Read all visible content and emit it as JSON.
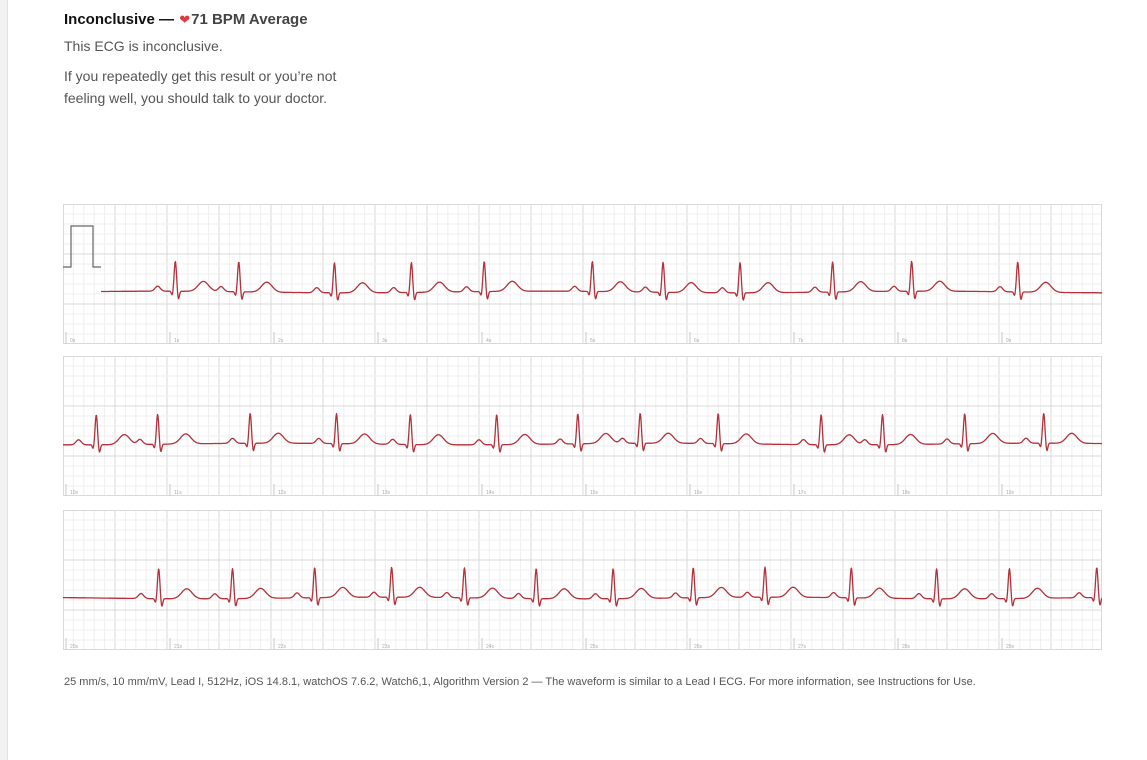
{
  "header": {
    "title": "Inconclusive —",
    "heart_icon": "heart-icon",
    "bpm": "71 BPM Average",
    "subtitle": "This ECG is inconclusive.",
    "advice": "If you repeatedly get this result or you’re not feeling well, you should talk to your doctor."
  },
  "footnote": "25 mm/s, 10 mm/mV, Lead I, 512Hz, iOS 14.8.1, watchOS 7.6.2, Watch6,1, Algorithm Version 2 — The waveform is similar to a Lead I ECG. For more information, see Instructions for Use.",
  "colors": {
    "trace": "#b5303a",
    "grid_major": "#d9d9d9",
    "grid_minor": "#efefef",
    "calibration": "#666666"
  },
  "chart_data": {
    "type": "line",
    "title": "",
    "xlabel": "",
    "ylabel": "",
    "lead": "Lead I",
    "paper_speed": "25 mm/s",
    "gain": "10 mm/mV",
    "strips": [
      {
        "tick_labels": [
          "0s",
          "1s",
          "2s",
          "3s",
          "4s",
          "5s",
          "6s",
          "7s",
          "8s",
          "9s"
        ],
        "x_range": [
          0,
          10
        ],
        "beats": [
          1.08,
          1.69,
          2.61,
          3.35,
          4.05,
          5.09,
          5.77,
          6.51,
          7.4,
          8.16,
          9.18
        ]
      },
      {
        "tick_labels": [
          "10s",
          "11s",
          "12s",
          "13s",
          "14s",
          "15s",
          "16s",
          "17s",
          "18s",
          "19s"
        ],
        "x_range": [
          10,
          20
        ],
        "beats": [
          10.32,
          10.91,
          11.8,
          12.63,
          13.34,
          14.17,
          14.95,
          15.55,
          16.3,
          17.29,
          17.88,
          18.67,
          19.43
        ]
      },
      {
        "tick_labels": [
          "20s",
          "21s",
          "22s",
          "23s",
          "24s",
          "25s",
          "26s",
          "27s",
          "28s",
          "29s"
        ],
        "x_range": [
          20,
          30
        ],
        "beats": [
          20.92,
          21.63,
          22.42,
          23.16,
          23.86,
          24.55,
          25.29,
          26.06,
          26.75,
          27.58,
          28.4,
          29.1,
          29.94
        ]
      }
    ]
  }
}
